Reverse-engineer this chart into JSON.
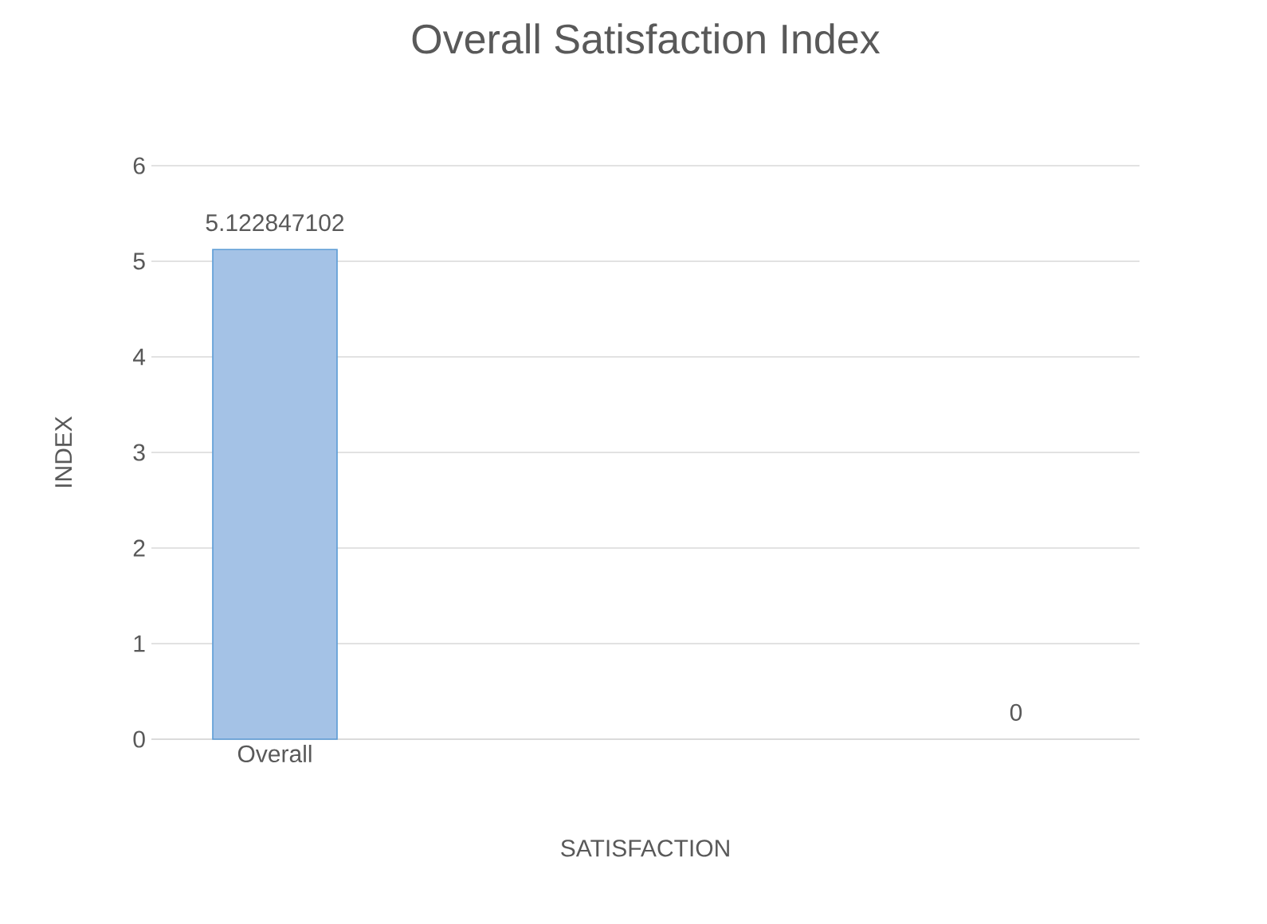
{
  "chart_data": {
    "type": "bar",
    "title": "Overall Satisfaction Index",
    "xlabel": "SATISFACTION",
    "ylabel": "INDEX",
    "categories": [
      "Overall",
      null,
      null,
      null
    ],
    "values": [
      5.122847102,
      null,
      null,
      0
    ],
    "color": "#a4c2e6",
    "ylim": [
      0,
      6
    ],
    "yticks": [
      0,
      1,
      2,
      3,
      4,
      5,
      6
    ],
    "grid": "y",
    "data_labels": true
  }
}
